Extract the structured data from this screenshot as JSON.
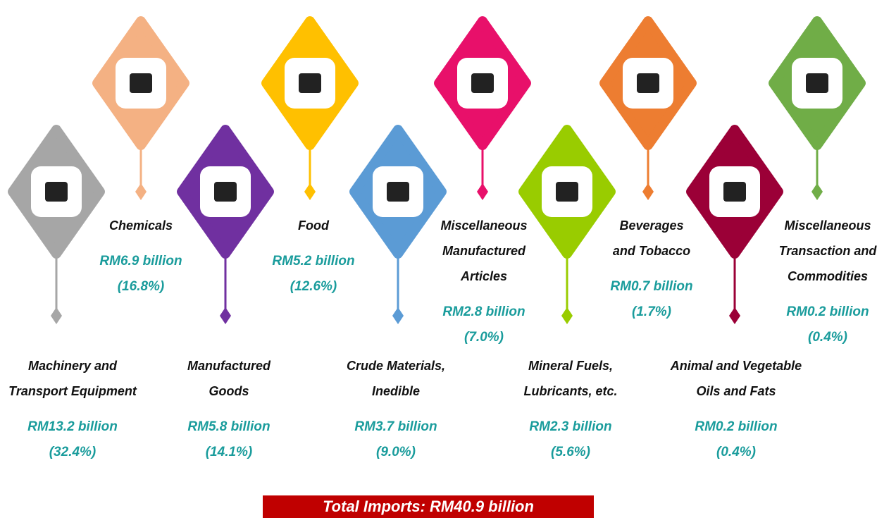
{
  "items": [
    {
      "name": [
        "Machinery and",
        "Transport Equipment"
      ],
      "value": "RM13.2 billion",
      "share": "(32.4%)",
      "color": "#a6a6a6"
    },
    {
      "name": [
        "Chemicals"
      ],
      "value": "RM6.9 billion",
      "share": "(16.8%)",
      "color": "#f4b183"
    },
    {
      "name": [
        "Manufactured",
        "Goods"
      ],
      "value": "RM5.8 billion",
      "share": "(14.1%)",
      "color": "#7030a0"
    },
    {
      "name": [
        "Food"
      ],
      "value": "RM5.2 billion",
      "share": "(12.6%)",
      "color": "#ffc000"
    },
    {
      "name": [
        "Crude Materials,",
        "Inedible"
      ],
      "value": "RM3.7 billion",
      "share": "(9.0%)",
      "color": "#5b9bd5"
    },
    {
      "name": [
        "Miscellaneous",
        "Manufactured",
        "Articles"
      ],
      "value": "RM2.8 billion",
      "share": "(7.0%)",
      "color": "#e8106a"
    },
    {
      "name": [
        "Mineral Fuels,",
        "Lubricants, etc."
      ],
      "value": "RM2.3 billion",
      "share": "(5.6%)",
      "color": "#99cc00"
    },
    {
      "name": [
        "Beverages",
        "and Tobacco"
      ],
      "value": "RM0.7 billion",
      "share": "(1.7%)",
      "color": "#ed7d31"
    },
    {
      "name": [
        "Animal and Vegetable",
        "Oils and Fats"
      ],
      "value": "RM0.2 billion",
      "share": "(0.4%)",
      "color": "#9b0037"
    },
    {
      "name": [
        "Miscellaneous",
        "Transaction and",
        "Commodities"
      ],
      "value": "RM0.2 billion",
      "share": "(0.4%)",
      "color": "#70ad47"
    }
  ],
  "total": "Total Imports: RM40.9 billion"
}
